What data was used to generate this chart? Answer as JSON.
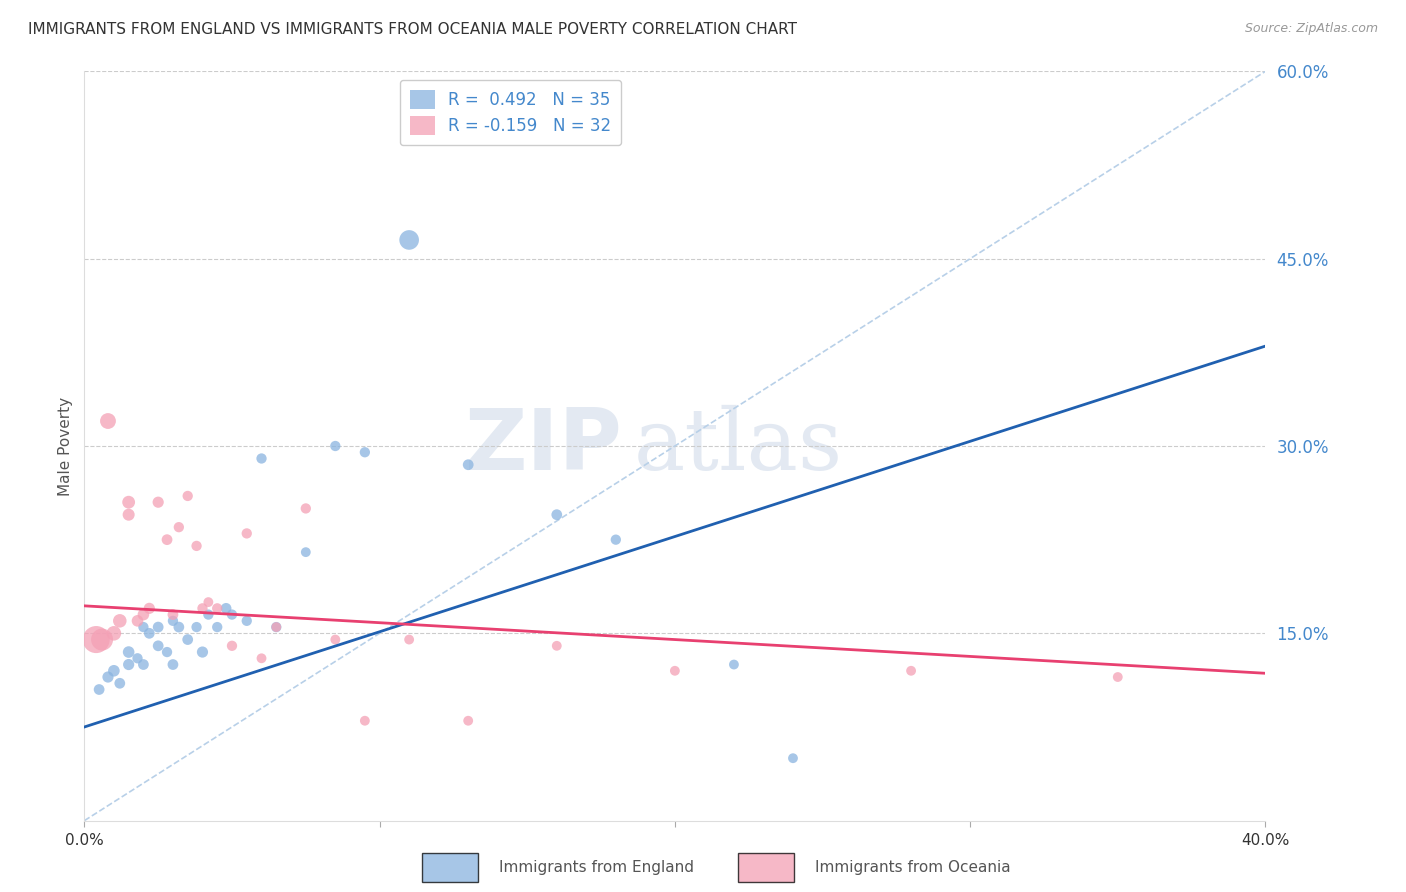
{
  "title": "IMMIGRANTS FROM ENGLAND VS IMMIGRANTS FROM OCEANIA MALE POVERTY CORRELATION CHART",
  "source": "Source: ZipAtlas.com",
  "ylabel": "Male Poverty",
  "xmin": 0.0,
  "xmax": 0.4,
  "ymin": 0.0,
  "ymax": 0.6,
  "yticks": [
    0.0,
    0.15,
    0.3,
    0.45,
    0.6
  ],
  "ytick_labels": [
    "",
    "15.0%",
    "30.0%",
    "45.0%",
    "60.0%"
  ],
  "xticks": [
    0.0,
    0.1,
    0.2,
    0.3,
    0.4
  ],
  "xtick_labels": [
    "0.0%",
    "",
    "",
    "",
    "40.0%"
  ],
  "england_color": "#8ab4e0",
  "oceania_color": "#f4a0b5",
  "england_line_color": "#2060b0",
  "oceania_line_color": "#e84070",
  "dashed_line_color": "#b8d0e8",
  "england_R": 0.492,
  "england_N": 35,
  "oceania_R": -0.159,
  "oceania_N": 32,
  "watermark_zip": "ZIP",
  "watermark_atlas": "atlas",
  "england_scatter_x": [
    0.005,
    0.008,
    0.01,
    0.012,
    0.015,
    0.015,
    0.018,
    0.02,
    0.02,
    0.022,
    0.025,
    0.025,
    0.028,
    0.03,
    0.03,
    0.032,
    0.035,
    0.038,
    0.04,
    0.042,
    0.045,
    0.048,
    0.05,
    0.055,
    0.06,
    0.065,
    0.075,
    0.085,
    0.095,
    0.11,
    0.13,
    0.16,
    0.18,
    0.22,
    0.24
  ],
  "england_scatter_y": [
    0.105,
    0.115,
    0.12,
    0.11,
    0.125,
    0.135,
    0.13,
    0.125,
    0.155,
    0.15,
    0.14,
    0.155,
    0.135,
    0.125,
    0.16,
    0.155,
    0.145,
    0.155,
    0.135,
    0.165,
    0.155,
    0.17,
    0.165,
    0.16,
    0.29,
    0.155,
    0.215,
    0.3,
    0.295,
    0.465,
    0.285,
    0.245,
    0.225,
    0.125,
    0.05
  ],
  "england_scatter_size": [
    60,
    65,
    70,
    60,
    65,
    70,
    55,
    60,
    55,
    60,
    60,
    60,
    55,
    60,
    55,
    60,
    60,
    55,
    65,
    55,
    55,
    60,
    55,
    55,
    55,
    55,
    50,
    55,
    55,
    200,
    60,
    60,
    55,
    50,
    50
  ],
  "oceania_scatter_x": [
    0.004,
    0.006,
    0.008,
    0.01,
    0.012,
    0.015,
    0.015,
    0.018,
    0.02,
    0.022,
    0.025,
    0.028,
    0.03,
    0.032,
    0.035,
    0.038,
    0.04,
    0.042,
    0.045,
    0.05,
    0.055,
    0.06,
    0.065,
    0.075,
    0.085,
    0.095,
    0.11,
    0.13,
    0.16,
    0.2,
    0.28,
    0.35
  ],
  "oceania_scatter_y": [
    0.145,
    0.145,
    0.32,
    0.15,
    0.16,
    0.255,
    0.245,
    0.16,
    0.165,
    0.17,
    0.255,
    0.225,
    0.165,
    0.235,
    0.26,
    0.22,
    0.17,
    0.175,
    0.17,
    0.14,
    0.23,
    0.13,
    0.155,
    0.25,
    0.145,
    0.08,
    0.145,
    0.08,
    0.14,
    0.12,
    0.12,
    0.115
  ],
  "oceania_scatter_size": [
    380,
    250,
    130,
    110,
    95,
    85,
    75,
    70,
    70,
    65,
    65,
    60,
    60,
    55,
    55,
    55,
    55,
    50,
    55,
    55,
    55,
    50,
    50,
    55,
    50,
    50,
    50,
    50,
    50,
    50,
    50,
    50
  ],
  "eng_line_x0": 0.0,
  "eng_line_y0": 0.075,
  "eng_line_x1": 0.4,
  "eng_line_y1": 0.38,
  "oce_line_x0": 0.0,
  "oce_line_y0": 0.172,
  "oce_line_x1": 0.4,
  "oce_line_y1": 0.118,
  "dash_line_x0": 0.0,
  "dash_line_y0": 0.0,
  "dash_line_x1": 0.4,
  "dash_line_y1": 0.6
}
